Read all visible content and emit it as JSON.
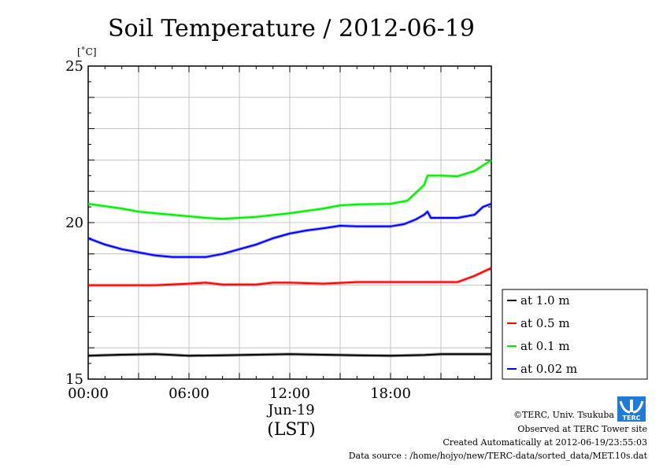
{
  "chart_data": {
    "type": "line",
    "title": "Soil Temperature / 2012-06-19",
    "yunit": "[˚C]",
    "ylim": [
      15,
      25
    ],
    "y_ticks": [
      15,
      20,
      25
    ],
    "xlim": [
      0,
      24
    ],
    "x_ticks": [
      {
        "hour": 0,
        "label": "00:00"
      },
      {
        "hour": 6,
        "label": "06:00"
      },
      {
        "hour": 12,
        "label": "12:00"
      },
      {
        "hour": 18,
        "label": "18:00"
      }
    ],
    "date_label": "Jun-19",
    "xlabel": "(LST)",
    "grid": true,
    "legend_position": "right",
    "series": [
      {
        "name": "at 1.0 m",
        "color": "#000000",
        "hours": [
          0,
          2,
          4,
          6,
          8,
          10,
          12,
          14,
          16,
          18,
          20,
          21,
          22,
          24
        ],
        "values": [
          15.75,
          15.78,
          15.8,
          15.75,
          15.76,
          15.78,
          15.8,
          15.78,
          15.76,
          15.75,
          15.77,
          15.8,
          15.8,
          15.8
        ]
      },
      {
        "name": "at 0.5 m",
        "color": "#ff0000",
        "hours": [
          0,
          2,
          4,
          6,
          7,
          8,
          10,
          11,
          12,
          14,
          16,
          18,
          20,
          21,
          22,
          23,
          24
        ],
        "values": [
          18.0,
          18.0,
          18.0,
          18.05,
          18.08,
          18.02,
          18.02,
          18.08,
          18.08,
          18.05,
          18.1,
          18.1,
          18.1,
          18.1,
          18.1,
          18.3,
          18.55
        ]
      },
      {
        "name": "at 0.1 m",
        "color": "#00ee00",
        "hours": [
          0,
          2,
          3,
          4,
          6,
          7,
          8,
          10,
          12,
          14,
          15,
          16,
          18,
          19,
          19.6,
          20,
          20.2,
          21,
          22,
          23,
          24
        ],
        "values": [
          20.6,
          20.45,
          20.35,
          20.3,
          20.2,
          20.15,
          20.12,
          20.18,
          20.3,
          20.45,
          20.55,
          20.58,
          20.6,
          20.7,
          21.0,
          21.2,
          21.5,
          21.5,
          21.48,
          21.65,
          22.0
        ]
      },
      {
        "name": "at 0.02 m",
        "color": "#0000ff",
        "hours": [
          0,
          1,
          2,
          3,
          4,
          5,
          6,
          7,
          8,
          9,
          10,
          11,
          12,
          13,
          14,
          15,
          16,
          17,
          18,
          18.8,
          19.5,
          20,
          20.2,
          20.4,
          21,
          22,
          23,
          23.5,
          24
        ],
        "values": [
          19.5,
          19.3,
          19.15,
          19.05,
          18.95,
          18.9,
          18.9,
          18.9,
          19.0,
          19.15,
          19.3,
          19.5,
          19.65,
          19.75,
          19.82,
          19.9,
          19.88,
          19.88,
          19.88,
          19.95,
          20.1,
          20.25,
          20.35,
          20.15,
          20.15,
          20.15,
          20.25,
          20.5,
          20.6
        ]
      }
    ]
  },
  "credits": {
    "copyright": "©TERC, Univ. Tsukuba",
    "observed": "Observed at TERC Tower site",
    "created": "Created Automatically at 2012-06-19/23:55:03",
    "source": "Data source : /home/hojyo/new/TERC-data/sorted_data/MET.10s.dat",
    "logo_text": "TERC",
    "logo_color": "#1e7bd8"
  }
}
